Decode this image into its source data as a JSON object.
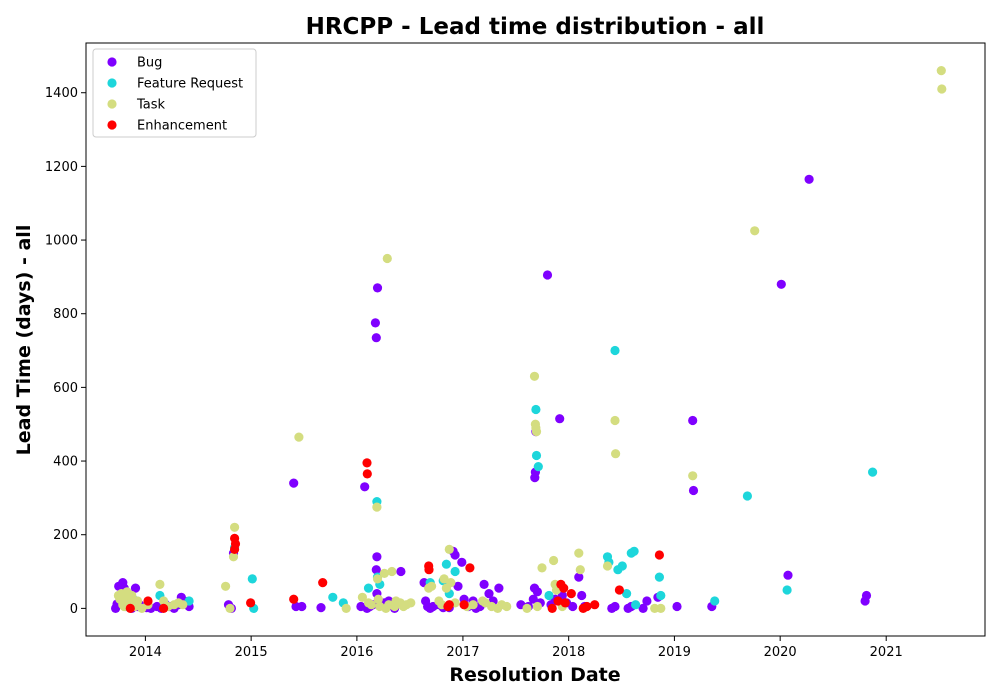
{
  "chart_data": {
    "type": "scatter",
    "title": "HRCPP - Lead time distribution - all",
    "xlabel": "Resolution Date",
    "ylabel": "Lead Time (days) - all",
    "x_is_date": true,
    "xlim": [
      "2013-06-10",
      "2021-12-08"
    ],
    "ylim": [
      -75,
      1535
    ],
    "x_ticks": [
      "2014",
      "2015",
      "2016",
      "2017",
      "2018",
      "2019",
      "2020",
      "2021"
    ],
    "y_ticks": [
      0,
      200,
      400,
      600,
      800,
      1000,
      1200,
      1400
    ],
    "grid": false,
    "legend_position": "top-left",
    "series": [
      {
        "name": "Bug",
        "color": "#7f00ff",
        "points": [
          [
            "2013-09-20",
            0
          ],
          [
            "2013-09-25",
            12
          ],
          [
            "2013-10-01",
            60
          ],
          [
            "2013-10-05",
            35
          ],
          [
            "2013-10-10",
            20
          ],
          [
            "2013-10-15",
            70
          ],
          [
            "2013-10-20",
            55
          ],
          [
            "2013-10-25",
            45
          ],
          [
            "2013-10-30",
            30
          ],
          [
            "2013-11-05",
            20
          ],
          [
            "2013-11-10",
            8
          ],
          [
            "2013-11-15",
            0
          ],
          [
            "2013-11-20",
            12
          ],
          [
            "2013-11-28",
            55
          ],
          [
            "2013-12-05",
            5
          ],
          [
            "2013-12-12",
            10
          ],
          [
            "2014-01-05",
            2
          ],
          [
            "2014-01-20",
            0
          ],
          [
            "2014-02-10",
            5
          ],
          [
            "2014-02-25",
            0
          ],
          [
            "2014-03-10",
            12
          ],
          [
            "2014-03-25",
            5
          ],
          [
            "2014-04-10",
            0
          ],
          [
            "2014-04-25",
            10
          ],
          [
            "2014-05-05",
            30
          ],
          [
            "2014-05-15",
            20
          ],
          [
            "2014-06-01",
            5
          ],
          [
            "2014-10-15",
            10
          ],
          [
            "2014-10-25",
            0
          ],
          [
            "2014-11-01",
            150
          ],
          [
            "2015-05-28",
            340
          ],
          [
            "2015-06-05",
            5
          ],
          [
            "2015-06-25",
            5
          ],
          [
            "2015-08-30",
            2
          ],
          [
            "2016-01-15",
            5
          ],
          [
            "2016-01-28",
            330
          ],
          [
            "2016-02-05",
            0
          ],
          [
            "2016-02-15",
            5
          ],
          [
            "2016-02-25",
            10
          ],
          [
            "2016-03-05",
            775
          ],
          [
            "2016-03-08",
            735
          ],
          [
            "2016-03-12",
            870
          ],
          [
            "2016-03-10",
            140
          ],
          [
            "2016-03-08",
            105
          ],
          [
            "2016-03-10",
            40
          ],
          [
            "2016-03-15",
            20
          ],
          [
            "2016-04-05",
            15
          ],
          [
            "2016-04-20",
            20
          ],
          [
            "2016-05-10",
            0
          ],
          [
            "2016-06-01",
            100
          ],
          [
            "2016-08-20",
            70
          ],
          [
            "2016-08-25",
            20
          ],
          [
            "2016-09-01",
            5
          ],
          [
            "2016-09-10",
            0
          ],
          [
            "2016-09-20",
            5
          ],
          [
            "2016-10-10",
            10
          ],
          [
            "2016-10-25",
            2
          ],
          [
            "2016-11-15",
            2
          ],
          [
            "2016-11-28",
            155
          ],
          [
            "2016-12-05",
            145
          ],
          [
            "2016-12-15",
            60
          ],
          [
            "2016-12-28",
            125
          ],
          [
            "2017-01-05",
            25
          ],
          [
            "2017-01-20",
            5
          ],
          [
            "2017-02-05",
            20
          ],
          [
            "2017-02-15",
            0
          ],
          [
            "2017-03-01",
            5
          ],
          [
            "2017-03-15",
            65
          ],
          [
            "2017-04-01",
            40
          ],
          [
            "2017-04-15",
            20
          ],
          [
            "2017-05-05",
            55
          ],
          [
            "2017-07-20",
            10
          ],
          [
            "2017-08-15",
            5
          ],
          [
            "2017-09-01",
            25
          ],
          [
            "2017-09-06",
            355
          ],
          [
            "2017-09-08",
            370
          ],
          [
            "2017-09-10",
            480
          ],
          [
            "2017-09-05",
            55
          ],
          [
            "2017-09-15",
            45
          ],
          [
            "2017-09-25",
            15
          ],
          [
            "2017-10-20",
            905
          ],
          [
            "2017-11-01",
            10
          ],
          [
            "2017-11-15",
            25
          ],
          [
            "2017-12-01",
            515
          ],
          [
            "2017-12-10",
            35
          ],
          [
            "2017-12-25",
            15
          ],
          [
            "2018-01-15",
            5
          ],
          [
            "2018-02-05",
            85
          ],
          [
            "2018-02-15",
            35
          ],
          [
            "2018-02-25",
            5
          ],
          [
            "2018-05-30",
            0
          ],
          [
            "2018-06-10",
            5
          ],
          [
            "2018-07-25",
            0
          ],
          [
            "2018-08-05",
            5
          ],
          [
            "2018-09-15",
            0
          ],
          [
            "2018-09-28",
            20
          ],
          [
            "2018-11-05",
            30
          ],
          [
            "2019-01-10",
            5
          ],
          [
            "2019-03-05",
            510
          ],
          [
            "2019-03-08",
            320
          ],
          [
            "2019-05-10",
            5
          ],
          [
            "2020-01-05",
            880
          ],
          [
            "2020-04-10",
            1165
          ],
          [
            "2020-01-28",
            90
          ],
          [
            "2020-10-20",
            20
          ],
          [
            "2020-10-25",
            35
          ]
        ]
      },
      {
        "name": "Feature Request",
        "color": "#1dd6db",
        "points": [
          [
            "2013-10-10",
            25
          ],
          [
            "2013-10-25",
            5
          ],
          [
            "2013-11-20",
            25
          ],
          [
            "2014-02-20",
            35
          ],
          [
            "2014-03-10",
            10
          ],
          [
            "2014-06-01",
            20
          ],
          [
            "2014-11-05",
            165
          ],
          [
            "2015-01-05",
            80
          ],
          [
            "2015-01-10",
            0
          ],
          [
            "2015-10-10",
            30
          ],
          [
            "2015-11-15",
            15
          ],
          [
            "2016-02-10",
            55
          ],
          [
            "2016-03-10",
            290
          ],
          [
            "2016-03-12",
            85
          ],
          [
            "2016-03-20",
            65
          ],
          [
            "2016-09-10",
            70
          ],
          [
            "2016-10-25",
            75
          ],
          [
            "2016-11-05",
            120
          ],
          [
            "2016-11-15",
            40
          ],
          [
            "2016-12-05",
            100
          ],
          [
            "2017-09-10",
            540
          ],
          [
            "2017-09-12",
            415
          ],
          [
            "2017-09-18",
            385
          ],
          [
            "2017-10-25",
            35
          ],
          [
            "2018-05-15",
            140
          ],
          [
            "2018-05-20",
            125
          ],
          [
            "2018-06-10",
            700
          ],
          [
            "2018-06-20",
            105
          ],
          [
            "2018-07-05",
            115
          ],
          [
            "2018-07-20",
            40
          ],
          [
            "2018-08-05",
            150
          ],
          [
            "2018-08-15",
            155
          ],
          [
            "2018-08-20",
            10
          ],
          [
            "2018-11-10",
            85
          ],
          [
            "2018-11-15",
            35
          ],
          [
            "2019-05-20",
            20
          ],
          [
            "2019-09-10",
            305
          ],
          [
            "2020-01-25",
            50
          ],
          [
            "2020-11-15",
            370
          ]
        ]
      },
      {
        "name": "Task",
        "color": "#d4dd80",
        "points": [
          [
            "2013-09-30",
            35
          ],
          [
            "2013-10-05",
            25
          ],
          [
            "2013-10-10",
            40
          ],
          [
            "2013-10-15",
            10
          ],
          [
            "2013-10-20",
            5
          ],
          [
            "2013-10-25",
            30
          ],
          [
            "2013-10-30",
            45
          ],
          [
            "2013-11-05",
            20
          ],
          [
            "2013-11-10",
            15
          ],
          [
            "2013-11-15",
            35
          ],
          [
            "2013-11-25",
            5
          ],
          [
            "2013-12-05",
            20
          ],
          [
            "2013-12-20",
            0
          ],
          [
            "2014-01-10",
            10
          ],
          [
            "2014-02-20",
            65
          ],
          [
            "2014-03-05",
            20
          ],
          [
            "2014-03-20",
            5
          ],
          [
            "2014-04-10",
            10
          ],
          [
            "2014-04-25",
            15
          ],
          [
            "2014-05-10",
            10
          ],
          [
            "2014-10-05",
            60
          ],
          [
            "2014-10-20",
            0
          ],
          [
            "2014-11-01",
            140
          ],
          [
            "2014-11-05",
            220
          ],
          [
            "2015-06-15",
            465
          ],
          [
            "2015-11-25",
            0
          ],
          [
            "2016-01-20",
            30
          ],
          [
            "2016-02-10",
            15
          ],
          [
            "2016-02-20",
            10
          ],
          [
            "2016-03-10",
            275
          ],
          [
            "2016-03-12",
            80
          ],
          [
            "2016-03-15",
            25
          ],
          [
            "2016-03-20",
            5
          ],
          [
            "2016-04-05",
            95
          ],
          [
            "2016-04-10",
            0
          ],
          [
            "2016-04-15",
            950
          ],
          [
            "2016-04-20",
            10
          ],
          [
            "2016-05-01",
            100
          ],
          [
            "2016-05-10",
            5
          ],
          [
            "2016-05-15",
            20
          ],
          [
            "2016-05-30",
            15
          ],
          [
            "2016-06-10",
            5
          ],
          [
            "2016-06-20",
            10
          ],
          [
            "2016-07-05",
            15
          ],
          [
            "2016-09-05",
            55
          ],
          [
            "2016-09-15",
            60
          ],
          [
            "2016-10-10",
            20
          ],
          [
            "2016-10-20",
            10
          ],
          [
            "2016-10-28",
            80
          ],
          [
            "2016-11-05",
            55
          ],
          [
            "2016-11-15",
            160
          ],
          [
            "2016-11-20",
            70
          ],
          [
            "2016-12-05",
            15
          ],
          [
            "2017-01-15",
            5
          ],
          [
            "2017-02-05",
            10
          ],
          [
            "2017-03-10",
            20
          ],
          [
            "2017-03-20",
            15
          ],
          [
            "2017-04-10",
            5
          ],
          [
            "2017-05-01",
            0
          ],
          [
            "2017-05-15",
            10
          ],
          [
            "2017-06-01",
            5
          ],
          [
            "2017-08-10",
            0
          ],
          [
            "2017-09-05",
            630
          ],
          [
            "2017-09-08",
            500
          ],
          [
            "2017-09-10",
            490
          ],
          [
            "2017-09-12",
            480
          ],
          [
            "2017-09-15",
            5
          ],
          [
            "2017-10-01",
            110
          ],
          [
            "2017-11-10",
            130
          ],
          [
            "2017-11-15",
            65
          ],
          [
            "2017-11-20",
            50
          ],
          [
            "2017-12-10",
            5
          ],
          [
            "2018-02-05",
            150
          ],
          [
            "2018-02-10",
            105
          ],
          [
            "2018-05-15",
            115
          ],
          [
            "2018-06-10",
            510
          ],
          [
            "2018-06-12",
            420
          ],
          [
            "2018-10-25",
            0
          ],
          [
            "2018-11-15",
            0
          ],
          [
            "2019-03-05",
            360
          ],
          [
            "2019-10-05",
            1025
          ],
          [
            "2021-07-10",
            1460
          ],
          [
            "2021-07-12",
            1410
          ]
        ]
      },
      {
        "name": "Enhancement",
        "color": "#ff0000",
        "points": [
          [
            "2013-11-10",
            0
          ],
          [
            "2014-01-10",
            20
          ],
          [
            "2014-03-05",
            0
          ],
          [
            "2014-11-05",
            190
          ],
          [
            "2014-11-08",
            175
          ],
          [
            "2014-11-05",
            160
          ],
          [
            "2014-12-30",
            15
          ],
          [
            "2015-05-28",
            25
          ],
          [
            "2015-09-05",
            70
          ],
          [
            "2016-02-05",
            395
          ],
          [
            "2016-02-06",
            365
          ],
          [
            "2016-09-05",
            115
          ],
          [
            "2016-09-06",
            105
          ],
          [
            "2016-11-10",
            5
          ],
          [
            "2016-11-15",
            10
          ],
          [
            "2017-01-05",
            10
          ],
          [
            "2017-01-25",
            110
          ],
          [
            "2017-11-05",
            0
          ],
          [
            "2017-11-25",
            20
          ],
          [
            "2017-12-05",
            65
          ],
          [
            "2017-12-15",
            55
          ],
          [
            "2017-12-20",
            15
          ],
          [
            "2018-01-10",
            40
          ],
          [
            "2018-02-20",
            0
          ],
          [
            "2018-03-05",
            5
          ],
          [
            "2018-04-01",
            10
          ],
          [
            "2018-06-25",
            50
          ],
          [
            "2018-11-10",
            145
          ]
        ]
      }
    ]
  }
}
